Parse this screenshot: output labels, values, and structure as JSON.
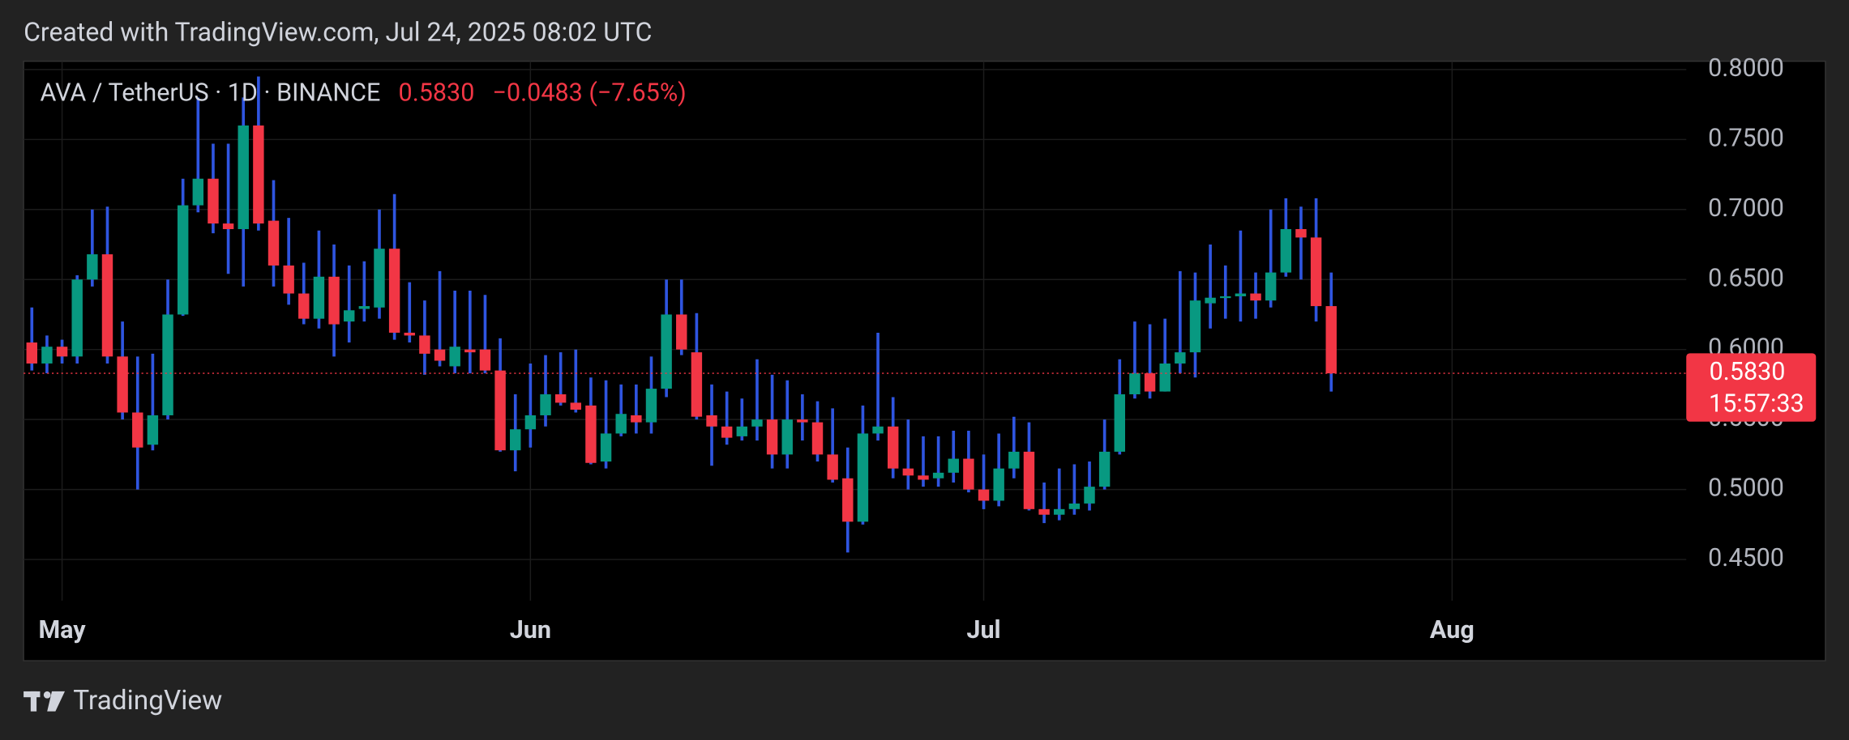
{
  "header": {
    "caption": "Created with TradingView.com, Jul 24, 2025 08:02 UTC"
  },
  "chart_data": {
    "type": "candlestick",
    "symbol": "AVA / TetherUS · 1D · BINANCE",
    "last_price": {
      "value": 0.583,
      "label": "0.5830"
    },
    "change": "−0.0483 (−7.65%)",
    "countdown": "15:57:33",
    "categories": [
      null,
      null,
      "May",
      null,
      null,
      null,
      null,
      null,
      null,
      null,
      null,
      null,
      null,
      null,
      null,
      null,
      null,
      null,
      null,
      null,
      null,
      null,
      null,
      null,
      null,
      null,
      null,
      null,
      null,
      null,
      null,
      null,
      null,
      "Jun",
      null,
      null,
      null,
      null,
      null,
      null,
      null,
      null,
      null,
      null,
      null,
      null,
      null,
      null,
      null,
      null,
      null,
      null,
      null,
      null,
      null,
      null,
      null,
      null,
      null,
      null,
      null,
      null,
      null,
      "Jul",
      null,
      null,
      null,
      null,
      null,
      null,
      null,
      null,
      null,
      null,
      null,
      null,
      null,
      null,
      null,
      null,
      null,
      null,
      null,
      null,
      null,
      null,
      null,
      null,
      null,
      null,
      null,
      null,
      null,
      null,
      "Aug",
      null,
      null,
      null,
      null,
      null,
      null,
      null,
      null,
      null,
      null,
      null,
      null,
      null,
      null,
      null
    ],
    "open": [
      0.605,
      0.59,
      0.602,
      0.595,
      0.65,
      0.668,
      0.595,
      0.555,
      0.532,
      0.553,
      0.625,
      0.703,
      0.722,
      0.69,
      0.686,
      0.76,
      0.692,
      0.66,
      0.64,
      0.622,
      0.652,
      0.62,
      0.629,
      0.63,
      0.672,
      0.612,
      0.61,
      0.6,
      0.588,
      0.6,
      0.6,
      0.585,
      0.528,
      0.543,
      0.553,
      0.568,
      0.562,
      0.56,
      0.52,
      0.54,
      0.553,
      0.548,
      0.572,
      0.625,
      0.598,
      0.553,
      0.545,
      0.538,
      0.545,
      0.55,
      0.525,
      0.55,
      0.548,
      0.525,
      0.508,
      0.477,
      0.54,
      0.545,
      0.515,
      0.51,
      0.508,
      0.512,
      0.522,
      0.5,
      0.492,
      0.515,
      0.527,
      0.486,
      0.482,
      0.486,
      0.49,
      0.502,
      0.527,
      0.568,
      0.583,
      0.57,
      0.59,
      0.598,
      0.633,
      0.637,
      0.638,
      0.64,
      0.635,
      0.655,
      0.686,
      0.68,
      0.631,
      null,
      null,
      null,
      null,
      null,
      null,
      null,
      null,
      null,
      null,
      null,
      null,
      null,
      null,
      null,
      null,
      null,
      null,
      null,
      null,
      null,
      null,
      null
    ],
    "high": [
      0.63,
      0.61,
      0.607,
      0.653,
      0.7,
      0.702,
      0.62,
      0.595,
      0.597,
      0.65,
      0.722,
      0.78,
      0.747,
      0.747,
      0.78,
      0.795,
      0.721,
      0.694,
      0.662,
      0.685,
      0.675,
      0.66,
      0.663,
      0.7,
      0.711,
      0.648,
      0.635,
      0.656,
      0.642,
      0.642,
      0.639,
      0.608,
      0.568,
      0.59,
      0.596,
      0.598,
      0.6,
      0.58,
      0.578,
      0.575,
      0.575,
      0.595,
      0.65,
      0.65,
      0.626,
      0.575,
      0.57,
      0.565,
      0.593,
      0.582,
      0.578,
      0.568,
      0.563,
      0.558,
      0.53,
      0.56,
      0.612,
      0.566,
      0.55,
      0.538,
      0.538,
      0.542,
      0.542,
      0.525,
      0.54,
      0.552,
      0.548,
      0.505,
      0.515,
      0.518,
      0.52,
      0.55,
      0.593,
      0.62,
      0.618,
      0.622,
      0.656,
      0.655,
      0.675,
      0.66,
      0.685,
      0.655,
      0.7,
      0.708,
      0.702,
      0.708,
      0.655,
      null,
      null,
      null,
      null,
      null,
      null,
      null,
      null,
      null,
      null,
      null,
      null,
      null,
      null,
      null,
      null,
      null,
      null,
      null,
      null,
      null,
      null,
      null
    ],
    "low": [
      0.585,
      0.583,
      0.59,
      0.59,
      0.645,
      0.59,
      0.55,
      0.5,
      0.528,
      0.55,
      0.624,
      0.698,
      0.683,
      0.654,
      0.645,
      0.685,
      0.645,
      0.632,
      0.618,
      0.615,
      0.595,
      0.605,
      0.62,
      0.622,
      0.607,
      0.605,
      0.582,
      0.588,
      0.583,
      0.583,
      0.583,
      0.527,
      0.513,
      0.53,
      0.545,
      0.56,
      0.555,
      0.518,
      0.515,
      0.538,
      0.54,
      0.54,
      0.566,
      0.596,
      0.55,
      0.517,
      0.532,
      0.535,
      0.535,
      0.515,
      0.515,
      0.535,
      0.52,
      0.505,
      0.455,
      0.475,
      0.535,
      0.508,
      0.5,
      0.502,
      0.502,
      0.505,
      0.498,
      0.486,
      0.488,
      0.508,
      0.485,
      0.476,
      0.478,
      0.482,
      0.485,
      0.5,
      0.525,
      0.565,
      0.565,
      0.57,
      0.583,
      0.58,
      0.615,
      0.622,
      0.62,
      0.622,
      0.63,
      0.652,
      0.65,
      0.62,
      0.57,
      null,
      null,
      null,
      null,
      null,
      null,
      null,
      null,
      null,
      null,
      null,
      null,
      null,
      null,
      null,
      null,
      null,
      null,
      null,
      null,
      null,
      null,
      null
    ],
    "close": [
      0.59,
      0.602,
      0.595,
      0.65,
      0.668,
      0.595,
      0.555,
      0.53,
      0.553,
      0.625,
      0.703,
      0.722,
      0.69,
      0.686,
      0.76,
      0.69,
      0.66,
      0.64,
      0.622,
      0.652,
      0.618,
      0.628,
      0.631,
      0.672,
      0.612,
      0.61,
      0.597,
      0.592,
      0.602,
      0.598,
      0.585,
      0.528,
      0.543,
      0.553,
      0.568,
      0.562,
      0.557,
      0.519,
      0.54,
      0.554,
      0.548,
      0.572,
      0.625,
      0.6,
      0.552,
      0.545,
      0.537,
      0.545,
      0.55,
      0.525,
      0.55,
      0.548,
      0.525,
      0.507,
      0.477,
      0.54,
      0.545,
      0.515,
      0.51,
      0.507,
      0.512,
      0.522,
      0.5,
      0.492,
      0.515,
      0.527,
      0.486,
      0.482,
      0.486,
      0.49,
      0.502,
      0.527,
      0.568,
      0.583,
      0.57,
      0.59,
      0.598,
      0.635,
      0.637,
      0.638,
      0.64,
      0.635,
      0.655,
      0.686,
      0.68,
      0.631,
      0.583,
      null,
      null,
      null,
      null,
      null,
      null,
      null,
      null,
      null,
      null,
      null,
      null,
      null,
      null,
      null,
      null,
      null,
      null,
      null,
      null,
      null,
      null,
      null
    ],
    "up_color": "#089981",
    "down_color": "#f23645",
    "wick_color": "#2f55e0",
    "ylim": [
      0.4206,
      0.8059
    ],
    "yticks": [
      {
        "value": 0.45,
        "label": "0.4500"
      },
      {
        "value": 0.5,
        "label": "0.5000"
      },
      {
        "value": 0.55,
        "label": "0.5500"
      },
      {
        "value": 0.6,
        "label": "0.6000"
      },
      {
        "value": 0.65,
        "label": "0.6500"
      },
      {
        "value": 0.7,
        "label": "0.7000"
      },
      {
        "value": 0.75,
        "label": "0.7500"
      },
      {
        "value": 0.8,
        "label": "0.8000"
      }
    ],
    "grid": true
  },
  "footer": {
    "brand": "TradingView"
  }
}
